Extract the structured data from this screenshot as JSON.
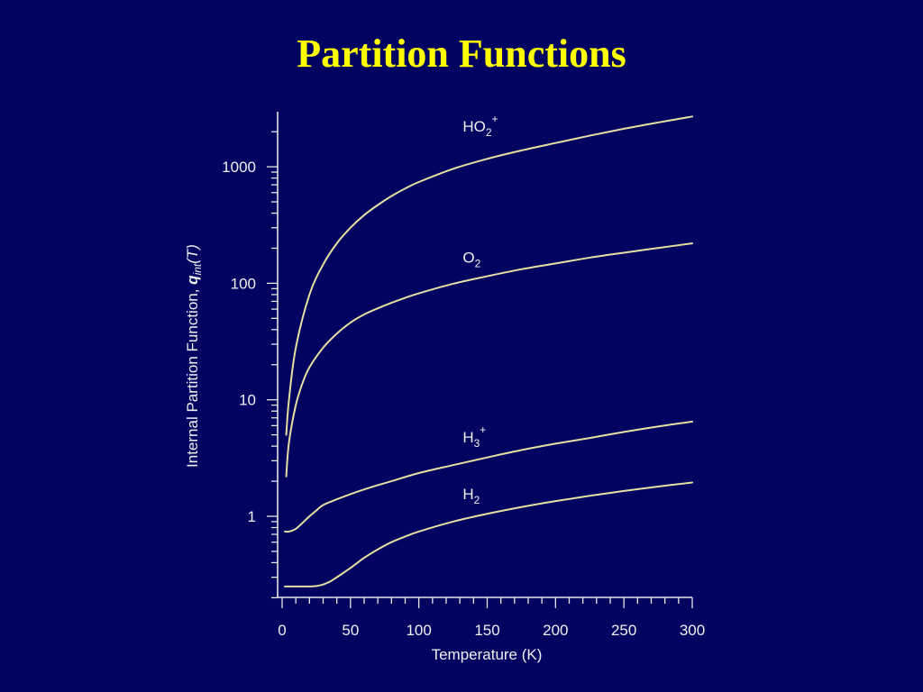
{
  "slide": {
    "title": "Partition Functions"
  },
  "colors": {
    "background": "#020360",
    "title": "#ffff00",
    "axes": "#e6e6e6",
    "curves": "#e8dfa2",
    "text": "#f0f0f0"
  },
  "chart_data": {
    "type": "line",
    "title": "",
    "xlabel": "Temperature (K)",
    "ylabel_parts": {
      "main": "Internal Partition Function, ",
      "q": "q",
      "sub": "int",
      "tail": "(T)"
    },
    "xlim": [
      0,
      300
    ],
    "ylim": [
      0.2,
      3000
    ],
    "y_scale": "log",
    "grid": false,
    "legend": "inline labels",
    "x_ticks": [
      0,
      50,
      100,
      150,
      200,
      250,
      300
    ],
    "x_tick_labels": [
      "0",
      "50",
      "100",
      "150",
      "200",
      "250",
      "300"
    ],
    "y_ticks": [
      1,
      10,
      100,
      1000
    ],
    "y_tick_labels": [
      "1",
      "10",
      "100",
      "1000"
    ],
    "series": [
      {
        "name": "HO2+",
        "label_base": "HO",
        "label_sub": "2",
        "label_sup": "+",
        "points": [
          [
            3,
            5.0
          ],
          [
            5,
            10
          ],
          [
            10,
            28
          ],
          [
            20,
            80
          ],
          [
            30,
            145
          ],
          [
            40,
            220
          ],
          [
            50,
            300
          ],
          [
            60,
            385
          ],
          [
            70,
            470
          ],
          [
            80,
            560
          ],
          [
            90,
            650
          ],
          [
            100,
            740
          ],
          [
            125,
            960
          ],
          [
            150,
            1170
          ],
          [
            175,
            1380
          ],
          [
            200,
            1600
          ],
          [
            225,
            1850
          ],
          [
            250,
            2120
          ],
          [
            275,
            2400
          ],
          [
            300,
            2700
          ]
        ]
      },
      {
        "name": "O2",
        "label_base": "O",
        "label_sub": "2",
        "label_sup": "",
        "points": [
          [
            3,
            2.2
          ],
          [
            5,
            4.3
          ],
          [
            10,
            9.0
          ],
          [
            15,
            14
          ],
          [
            20,
            19
          ],
          [
            30,
            28
          ],
          [
            40,
            37
          ],
          [
            50,
            46
          ],
          [
            60,
            54
          ],
          [
            70,
            61
          ],
          [
            80,
            68
          ],
          [
            90,
            75
          ],
          [
            100,
            82
          ],
          [
            125,
            99
          ],
          [
            150,
            115
          ],
          [
            175,
            132
          ],
          [
            200,
            148
          ],
          [
            225,
            166
          ],
          [
            250,
            183
          ],
          [
            275,
            201
          ],
          [
            300,
            220
          ]
        ]
      },
      {
        "name": "H3+",
        "label_base": "H",
        "label_sub": "3",
        "label_sup": "+",
        "points": [
          [
            2,
            0.74
          ],
          [
            5,
            0.74
          ],
          [
            10,
            0.78
          ],
          [
            15,
            0.88
          ],
          [
            20,
            1.0
          ],
          [
            25,
            1.12
          ],
          [
            30,
            1.25
          ],
          [
            40,
            1.4
          ],
          [
            50,
            1.55
          ],
          [
            60,
            1.7
          ],
          [
            70,
            1.85
          ],
          [
            80,
            2.0
          ],
          [
            100,
            2.35
          ],
          [
            125,
            2.75
          ],
          [
            150,
            3.2
          ],
          [
            175,
            3.7
          ],
          [
            200,
            4.2
          ],
          [
            225,
            4.7
          ],
          [
            250,
            5.3
          ],
          [
            275,
            5.9
          ],
          [
            300,
            6.5
          ]
        ]
      },
      {
        "name": "H2",
        "label_base": "H",
        "label_sub": "2",
        "label_sup": "",
        "points": [
          [
            2,
            0.25
          ],
          [
            10,
            0.25
          ],
          [
            20,
            0.25
          ],
          [
            25,
            0.252
          ],
          [
            30,
            0.26
          ],
          [
            35,
            0.275
          ],
          [
            40,
            0.3
          ],
          [
            50,
            0.36
          ],
          [
            60,
            0.44
          ],
          [
            70,
            0.52
          ],
          [
            80,
            0.6
          ],
          [
            90,
            0.67
          ],
          [
            100,
            0.74
          ],
          [
            125,
            0.9
          ],
          [
            150,
            1.05
          ],
          [
            175,
            1.2
          ],
          [
            200,
            1.35
          ],
          [
            225,
            1.5
          ],
          [
            250,
            1.65
          ],
          [
            275,
            1.8
          ],
          [
            300,
            1.95
          ]
        ]
      }
    ]
  }
}
